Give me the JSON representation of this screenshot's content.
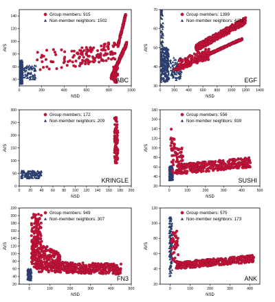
{
  "colors": {
    "member": "#c8143c",
    "member_edge": "#7a0a22",
    "nonmember": "#2b3f6e"
  },
  "chart_data": [
    {
      "type": "scatter",
      "label": "ABC",
      "xlabel": "NSD",
      "ylabel": "AVS",
      "xlim": [
        0,
        1000
      ],
      "ylim": [
        30,
        150
      ],
      "xticks": [
        0,
        200,
        400,
        600,
        800,
        1000
      ],
      "yticks": [
        40,
        60,
        80,
        100,
        120,
        140
      ],
      "legend": {
        "member": "Group members: 915",
        "nonmember": "Non-member neighbors: 1502"
      },
      "series": [
        {
          "role": "member",
          "count": 915,
          "clusters": [
            {
              "x": [
                820,
                960
              ],
              "y": [
                40,
                100
              ],
              "n": 260,
              "trend": 0.9
            },
            {
              "x": [
                880,
                950
              ],
              "y": [
                90,
                145
              ],
              "n": 140,
              "trend": 0.9
            },
            {
              "x": [
                500,
                860
              ],
              "y": [
                60,
                100
              ],
              "n": 110,
              "trend": 0.3
            },
            {
              "x": [
                150,
                500
              ],
              "y": [
                55,
                90
              ],
              "n": 35,
              "trend": 0.1
            },
            {
              "x": [
                840,
                880
              ],
              "y": [
                35,
                60
              ],
              "n": 40,
              "trend": 0
            }
          ]
        },
        {
          "role": "nonmember",
          "count": 1502,
          "clusters": [
            {
              "x": [
                5,
                30
              ],
              "y": [
                33,
                70
              ],
              "n": 240,
              "trend": 0
            },
            {
              "x": [
                30,
                150
              ],
              "y": [
                40,
                62
              ],
              "n": 70,
              "trend": 0
            }
          ]
        }
      ]
    },
    {
      "type": "scatter",
      "label": "EGF",
      "xlabel": "NSD",
      "ylabel": "AVS",
      "xlim": [
        0,
        1400
      ],
      "ylim": [
        30,
        70
      ],
      "xticks": [
        0,
        200,
        400,
        600,
        800,
        1000,
        1200,
        1400
      ],
      "yticks": [
        30,
        40,
        50,
        60,
        70
      ],
      "legend": {
        "member": "Group members: 1399",
        "nonmember": "Non-member neighbors: 4272"
      },
      "series": [
        {
          "role": "member",
          "count": 1399,
          "clusters": [
            {
              "x": [
                200,
                1150
              ],
              "y": [
                38,
                55
              ],
              "n": 520,
              "trend": 0.95
            },
            {
              "x": [
                500,
                1200
              ],
              "y": [
                48,
                66
              ],
              "n": 380,
              "trend": 0.8
            },
            {
              "x": [
                250,
                700
              ],
              "y": [
                38,
                50
              ],
              "n": 120,
              "trend": 0.5
            }
          ]
        },
        {
          "role": "nonmember",
          "count": 4272,
          "clusters": [
            {
              "x": [
                5,
                120
              ],
              "y": [
                32,
                50
              ],
              "n": 260,
              "trend": 0
            },
            {
              "x": [
                5,
                40
              ],
              "y": [
                50,
                72
              ],
              "n": 60,
              "trend": 0
            },
            {
              "x": [
                100,
                300
              ],
              "y": [
                33,
                45
              ],
              "n": 110,
              "trend": 0
            }
          ]
        }
      ]
    },
    {
      "type": "scatter",
      "label": "KRINGLE",
      "xlabel": "NSD",
      "ylabel": "AVS",
      "xlim": [
        0,
        200
      ],
      "ylim": [
        0,
        300
      ],
      "xticks": [
        0,
        20,
        40,
        60,
        80,
        100,
        120,
        140,
        160,
        180,
        200
      ],
      "yticks": [
        0,
        50,
        100,
        150,
        200,
        250,
        300
      ],
      "legend": {
        "member": "Group members: 172",
        "nonmember": "Non-member neighbors: 209"
      },
      "series": [
        {
          "role": "member",
          "count": 172,
          "clusters": [
            {
              "x": [
                170,
                176
              ],
              "y": [
                90,
                270
              ],
              "n": 90,
              "trend": 0
            }
          ]
        },
        {
          "role": "nonmember",
          "count": 209,
          "clusters": [
            {
              "x": [
                3,
                40
              ],
              "y": [
                30,
                60
              ],
              "n": 130,
              "trend": 0
            }
          ]
        }
      ]
    },
    {
      "type": "scatter",
      "label": "SUSHI",
      "xlabel": "NSD",
      "ylabel": "AVS",
      "xlim": [
        -50,
        500
      ],
      "ylim": [
        20,
        180
      ],
      "xticks": [
        0,
        100,
        200,
        300,
        400,
        500
      ],
      "yticks": [
        20,
        40,
        60,
        80,
        100,
        120,
        140,
        160,
        180
      ],
      "legend": {
        "member": "Group members: 556",
        "nonmember": "Non-member neighbors: 939"
      },
      "series": [
        {
          "role": "member",
          "count": 556,
          "clusters": [
            {
              "x": [
                50,
                450
              ],
              "y": [
                45,
                80
              ],
              "n": 320,
              "trend": 0.4
            },
            {
              "x": [
                10,
                80
              ],
              "y": [
                45,
                100
              ],
              "n": 70,
              "trend": 0
            },
            {
              "x": [
                5,
                30
              ],
              "y": [
                100,
                155
              ],
              "n": 12,
              "trend": 0
            }
          ]
        },
        {
          "role": "nonmember",
          "count": 939,
          "clusters": [
            {
              "x": [
                0,
                20
              ],
              "y": [
                32,
                62
              ],
              "n": 180,
              "trend": 0
            }
          ]
        }
      ]
    },
    {
      "type": "scatter",
      "label": "FN3",
      "xlabel": "NSD",
      "ylabel": "AVS",
      "xlim": [
        -50,
        500
      ],
      "ylim": [
        20,
        220
      ],
      "xticks": [
        0,
        100,
        200,
        300,
        400,
        500
      ],
      "yticks": [
        20,
        40,
        60,
        80,
        100,
        120,
        140,
        160,
        180,
        200,
        220
      ],
      "legend": {
        "member": "Group members: 949",
        "nonmember": "Non-member neighbors: 307"
      },
      "series": [
        {
          "role": "member",
          "count": 949,
          "clusters": [
            {
              "x": [
                10,
                60
              ],
              "y": [
                60,
                205
              ],
              "n": 160,
              "trend": 0
            },
            {
              "x": [
                40,
                450
              ],
              "y": [
                45,
                80
              ],
              "n": 420,
              "trend": -0.2
            },
            {
              "x": [
                20,
                150
              ],
              "y": [
                60,
                140
              ],
              "n": 120,
              "trend": -0.5
            }
          ]
        },
        {
          "role": "nonmember",
          "count": 307,
          "clusters": [
            {
              "x": [
                -10,
                10
              ],
              "y": [
                30,
                60
              ],
              "n": 120,
              "trend": 0
            }
          ]
        }
      ]
    },
    {
      "type": "scatter",
      "label": "ANK",
      "xlabel": "NSD",
      "ylabel": "AVS",
      "xlim": [
        -50,
        450
      ],
      "ylim": [
        20,
        120
      ],
      "xticks": [
        0,
        100,
        200,
        300,
        400
      ],
      "yticks": [
        20,
        40,
        60,
        80,
        100,
        120
      ],
      "legend": {
        "member": "Group members: 575",
        "nonmember": "Non-member neighbors: 173"
      },
      "series": [
        {
          "role": "member",
          "count": 575,
          "clusters": [
            {
              "x": [
                30,
                420
              ],
              "y": [
                40,
                58
              ],
              "n": 360,
              "trend": 0.5
            },
            {
              "x": [
                5,
                40
              ],
              "y": [
                45,
                90
              ],
              "n": 40,
              "trend": 0
            }
          ]
        },
        {
          "role": "nonmember",
          "count": 173,
          "clusters": [
            {
              "x": [
                -5,
                10
              ],
              "y": [
                30,
                108
              ],
              "n": 110,
              "trend": 0
            }
          ]
        }
      ]
    }
  ]
}
